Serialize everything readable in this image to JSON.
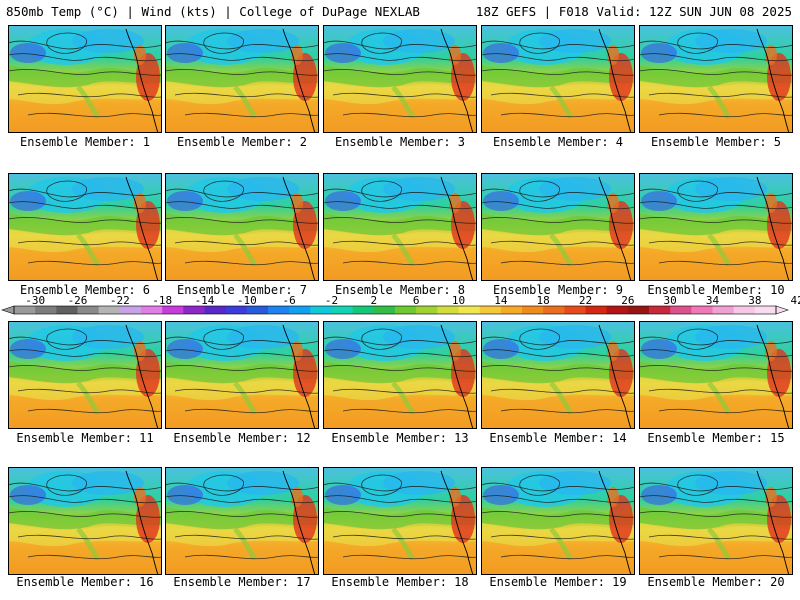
{
  "header": {
    "left_title": "850mb Temp (°C) | Wind (kts) | College of DuPage NEXLAB",
    "right_title": "18Z GEFS | F018 Valid: 12Z SUN JUN 08 2025"
  },
  "members": [
    {
      "label": "Ensemble Member: 1"
    },
    {
      "label": "Ensemble Member: 2"
    },
    {
      "label": "Ensemble Member: 3"
    },
    {
      "label": "Ensemble Member: 4"
    },
    {
      "label": "Ensemble Member: 5"
    },
    {
      "label": "Ensemble Member: 6"
    },
    {
      "label": "Ensemble Member: 7"
    },
    {
      "label": "Ensemble Member: 8"
    },
    {
      "label": "Ensemble Member: 9"
    },
    {
      "label": "Ensemble Member: 10"
    },
    {
      "label": "Ensemble Member: 11"
    },
    {
      "label": "Ensemble Member: 12"
    },
    {
      "label": "Ensemble Member: 13"
    },
    {
      "label": "Ensemble Member: 14"
    },
    {
      "label": "Ensemble Member: 15"
    },
    {
      "label": "Ensemble Member: 16"
    },
    {
      "label": "Ensemble Member: 17"
    },
    {
      "label": "Ensemble Member: 18"
    },
    {
      "label": "Ensemble Member: 19"
    },
    {
      "label": "Ensemble Member: 20"
    }
  ],
  "colorbar": {
    "tick_labels": [
      "-30",
      "-26",
      "-22",
      "-18",
      "-14",
      "-10",
      "-6",
      "-2",
      "2",
      "6",
      "10",
      "14",
      "18",
      "22",
      "26",
      "30",
      "34",
      "38",
      "42"
    ],
    "colors": [
      "#9a9a9a",
      "#7d7d7d",
      "#606060",
      "#8a8a8a",
      "#b4b4b4",
      "#c8a2e6",
      "#e17ee6",
      "#c83cdc",
      "#8c28c8",
      "#5a28c8",
      "#3c3cdc",
      "#285adc",
      "#1e82f0",
      "#14a0f0",
      "#14c8dc",
      "#14d2b4",
      "#14c878",
      "#32be46",
      "#6ec832",
      "#a0d232",
      "#d2dc3c",
      "#f0e650",
      "#f5c83c",
      "#f5aa28",
      "#f08c1e",
      "#eb6e1e",
      "#e64b1e",
      "#d22814",
      "#b41414",
      "#961414",
      "#c8283c",
      "#dc508c",
      "#f078b4",
      "#f0a0d2",
      "#f5c8e6",
      "#fadcf0"
    ]
  }
}
